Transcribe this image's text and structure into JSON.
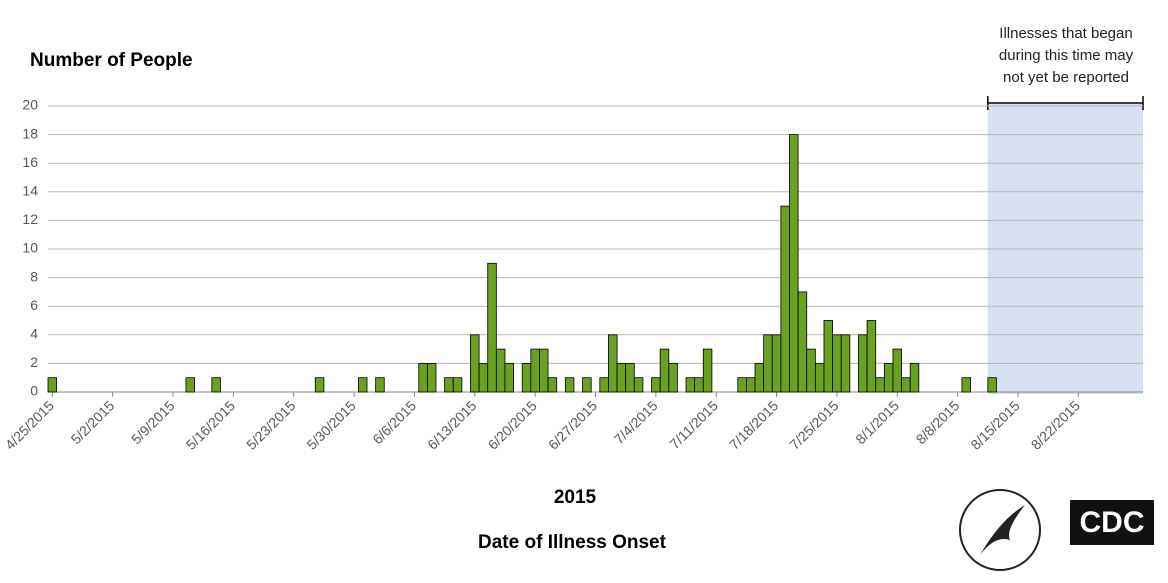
{
  "chart_data": {
    "type": "bar",
    "title": "Number of People",
    "subtitle": "2015",
    "x_label": "Date of Illness Onset",
    "annotation": "Illnesses that began during this time may not yet be reported",
    "logo_text": "CDC",
    "color": "#6aa121",
    "grid": true,
    "ylim": [
      0,
      20
    ],
    "yticks": [
      0,
      2,
      4,
      6,
      8,
      10,
      12,
      14,
      16,
      18,
      20
    ],
    "categories": [
      "4/25/2015",
      null,
      null,
      null,
      null,
      null,
      null,
      "5/2/2015",
      null,
      null,
      null,
      null,
      null,
      null,
      "5/9/2015",
      null,
      null,
      null,
      null,
      null,
      null,
      "5/16/2015",
      null,
      null,
      null,
      null,
      null,
      null,
      "5/23/2015",
      null,
      null,
      null,
      null,
      null,
      null,
      "5/30/2015",
      null,
      null,
      null,
      null,
      null,
      null,
      "6/6/2015",
      null,
      null,
      null,
      null,
      null,
      null,
      "6/13/2015",
      null,
      null,
      null,
      null,
      null,
      null,
      "6/20/2015",
      null,
      null,
      null,
      null,
      null,
      null,
      "6/27/2015",
      null,
      null,
      null,
      null,
      null,
      null,
      "7/4/2015",
      null,
      null,
      null,
      null,
      null,
      null,
      "7/11/2015",
      null,
      null,
      null,
      null,
      null,
      null,
      "7/18/2015",
      null,
      null,
      null,
      null,
      null,
      null,
      "7/25/2015",
      null,
      null,
      null,
      null,
      null,
      null,
      "8/1/2015",
      null,
      null,
      null,
      null,
      null,
      null,
      "8/8/2015",
      null,
      null,
      null,
      null,
      null,
      null,
      "8/15/2015",
      null,
      null,
      null,
      null,
      null,
      null,
      "8/22/2015",
      null,
      null,
      null,
      null,
      null,
      null,
      null
    ],
    "values": [
      1,
      0,
      0,
      0,
      0,
      0,
      0,
      0,
      0,
      0,
      0,
      0,
      0,
      0,
      0,
      0,
      1,
      0,
      0,
      1,
      0,
      0,
      0,
      0,
      0,
      0,
      0,
      0,
      0,
      0,
      0,
      1,
      0,
      0,
      0,
      0,
      1,
      0,
      1,
      0,
      0,
      0,
      0,
      2,
      2,
      0,
      1,
      1,
      0,
      4,
      2,
      9,
      3,
      2,
      0,
      2,
      3,
      3,
      1,
      0,
      1,
      0,
      1,
      0,
      1,
      4,
      2,
      2,
      1,
      0,
      1,
      3,
      2,
      0,
      1,
      1,
      3,
      0,
      0,
      0,
      1,
      1,
      2,
      4,
      4,
      13,
      18,
      7,
      3,
      2,
      5,
      4,
      4,
      0,
      4,
      5,
      1,
      2,
      3,
      1,
      2,
      0,
      0,
      0,
      0,
      0,
      1,
      0,
      0,
      1,
      0,
      0,
      0,
      0,
      0,
      0,
      0,
      0,
      0,
      0,
      0,
      0,
      0,
      0,
      0,
      0,
      0
    ]
  }
}
